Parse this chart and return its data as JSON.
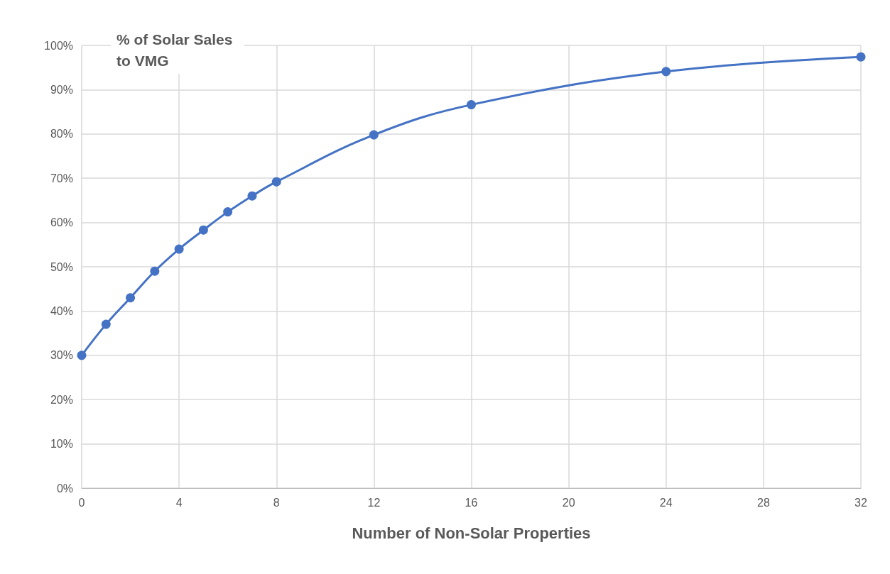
{
  "chart_data": {
    "type": "line",
    "title": "% of Solar Sales to VMG",
    "xlabel": "Number of Non-Solar Properties",
    "x": [
      0,
      1,
      2,
      3,
      4,
      5,
      6,
      7,
      8,
      12,
      16,
      24,
      32
    ],
    "series": [
      {
        "color": "#4472c4",
        "values": [
          30,
          37,
          43,
          49,
          54,
          58.3,
          62.4,
          66,
          69.2,
          79.8,
          86.6,
          94.1,
          97.4
        ]
      }
    ],
    "xlim": [
      0,
      32
    ],
    "xticks": [
      0,
      4,
      8,
      12,
      16,
      20,
      24,
      28,
      32
    ],
    "ylim": [
      0,
      100
    ],
    "yticks": [
      {
        "value": 0,
        "label": "0%"
      },
      {
        "value": 10,
        "label": "10%"
      },
      {
        "value": 20,
        "label": "20%"
      },
      {
        "value": 30,
        "label": "30%"
      },
      {
        "value": 40,
        "label": "40%"
      },
      {
        "value": 50,
        "label": "50%"
      },
      {
        "value": 60,
        "label": "60%"
      },
      {
        "value": 70,
        "label": "70%"
      },
      {
        "value": 80,
        "label": "80%"
      },
      {
        "value": 90,
        "label": "90%"
      },
      {
        "value": 100,
        "label": "100%"
      }
    ],
    "grid": true,
    "marker": "circle",
    "line_style": "solid"
  }
}
